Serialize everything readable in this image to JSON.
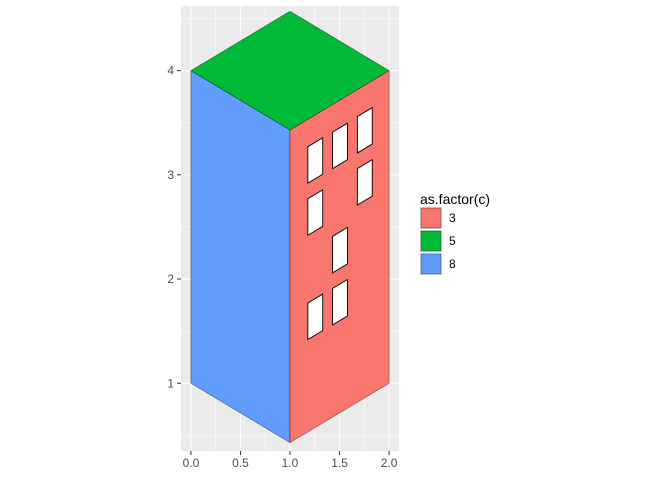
{
  "chart_data": {
    "type": "polygon",
    "xlim": [
      -0.1,
      2.1
    ],
    "ylim": [
      0.35,
      4.62
    ],
    "coord": "fixed",
    "grid": true,
    "legend_placement": "right",
    "x_ticks": [
      {
        "value": 0.0,
        "label": "0.0"
      },
      {
        "value": 0.5,
        "label": "0.5"
      },
      {
        "value": 1.0,
        "label": "1.0"
      },
      {
        "value": 1.5,
        "label": "1.5"
      },
      {
        "value": 2.0,
        "label": "2.0"
      }
    ],
    "y_ticks": [
      {
        "value": 1,
        "label": "1"
      },
      {
        "value": 2,
        "label": "2"
      },
      {
        "value": 3,
        "label": "3"
      },
      {
        "value": 4,
        "label": "4"
      }
    ],
    "legend": {
      "title": "as.factor(c)",
      "entries": [
        {
          "label": "3",
          "color": "#F8766D"
        },
        {
          "label": "5",
          "color": "#00BA38"
        },
        {
          "label": "8",
          "color": "#619CFF"
        }
      ]
    },
    "polygons": [
      {
        "group": "left-face",
        "c": "8",
        "color": "#619CFF",
        "points": [
          [
            0,
            4
          ],
          [
            1,
            3.43
          ],
          [
            1,
            0.43
          ],
          [
            0,
            1
          ]
        ]
      },
      {
        "group": "right-face",
        "c": "3",
        "color": "#F8766D",
        "points": [
          [
            1,
            3.43
          ],
          [
            2,
            4
          ],
          [
            2,
            1
          ],
          [
            1,
            0.43
          ]
        ]
      },
      {
        "group": "roof",
        "c": "5",
        "color": "#00BA38",
        "points": [
          [
            0,
            4
          ],
          [
            1,
            4.57
          ],
          [
            2,
            4
          ],
          [
            1,
            3.43
          ]
        ]
      }
    ],
    "windows": [
      {
        "x": 1.18,
        "y": 2.92
      },
      {
        "x": 1.43,
        "y": 3.06
      },
      {
        "x": 1.68,
        "y": 3.21
      },
      {
        "x": 1.18,
        "y": 2.42
      },
      {
        "x": 1.68,
        "y": 2.71
      },
      {
        "x": 1.43,
        "y": 2.06
      },
      {
        "x": 1.18,
        "y": 1.42
      },
      {
        "x": 1.43,
        "y": 1.56
      }
    ],
    "window_size": {
      "w": 0.15,
      "h": 0.35
    },
    "window_color": "#FFFFFF"
  },
  "colors": {
    "panel_bg": "#EBEBEB",
    "grid_major": "#FFFFFF",
    "outline": "#000000"
  }
}
